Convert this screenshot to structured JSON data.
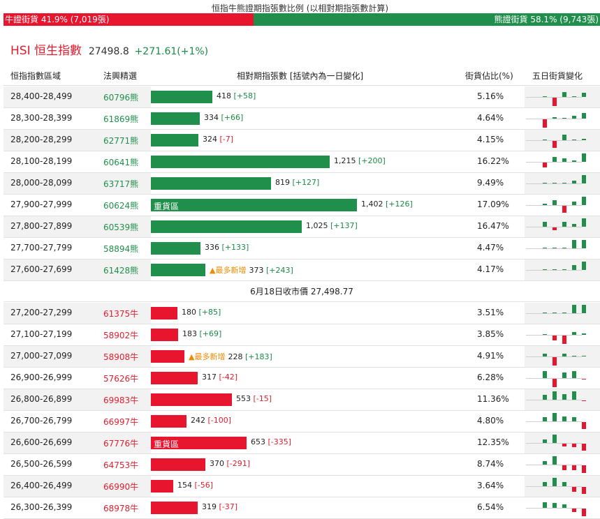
{
  "ratio": {
    "title": "恒指牛熊證期指張數比例 (以相對期指張數計算)",
    "bull_label": "牛證街貨 41.9% (7,019張)",
    "bear_label": "熊證街貨 58.1% (9,743張)",
    "bull_pct": 41.9,
    "bear_pct": 58.1,
    "bull_color": "#e8152f",
    "bear_color": "#1f8f4b"
  },
  "index": {
    "name": "HSI 恒生指數",
    "price": "27498.8",
    "change": "+271.61(+1%)"
  },
  "headers": {
    "range": "恒指指數區域",
    "code": "法興精選",
    "bar": "相對期指張數 [括號內為一日變化]",
    "pct": "街貨佔比(%)",
    "spark": "五日街貨變化"
  },
  "close_text": "6月18日收市價 27,498.77",
  "heavy_label": "重貨區",
  "new_label": "最多新增",
  "bear_rows": [
    {
      "range": "28,400-28,499",
      "code": "60796熊",
      "value": 418,
      "value_text": "418",
      "change": "[+58]",
      "pct": "5.16%",
      "heavy": false,
      "most_new": false,
      "five_day": [
        0,
        -1,
        0.6,
        0,
        0.5
      ]
    },
    {
      "range": "28,300-28,399",
      "code": "61869熊",
      "value": 334,
      "value_text": "334",
      "change": "[+66]",
      "pct": "4.64%",
      "heavy": false,
      "most_new": false,
      "five_day": [
        -1,
        0.2,
        0,
        0.3,
        0.7
      ]
    },
    {
      "range": "28,200-28,299",
      "code": "62771熊",
      "value": 324,
      "value_text": "324",
      "change": "[-7]",
      "pct": "4.15%",
      "heavy": false,
      "most_new": false,
      "five_day": [
        0,
        -0.8,
        0.7,
        0,
        0.2
      ]
    },
    {
      "range": "28,100-28,199",
      "code": "60641熊",
      "value": 1215,
      "value_text": "1,215",
      "change": "[+200]",
      "pct": "16.22%",
      "heavy": false,
      "most_new": false,
      "five_day": [
        -0.6,
        0.6,
        0.4,
        0.2,
        1
      ]
    },
    {
      "range": "28,000-28,099",
      "code": "63717熊",
      "value": 819,
      "value_text": "819",
      "change": "[+127]",
      "pct": "9.49%",
      "heavy": false,
      "most_new": false,
      "five_day": [
        0.1,
        0,
        0.1,
        0.3,
        1
      ]
    },
    {
      "range": "27,900-27,999",
      "code": "60624熊",
      "value": 1402,
      "value_text": "1,402",
      "change": "[+126]",
      "pct": "17.09%",
      "heavy": true,
      "most_new": false,
      "five_day": [
        0.2,
        0.6,
        -0.8,
        0.4,
        1
      ]
    },
    {
      "range": "27,800-27,899",
      "code": "60539熊",
      "value": 1025,
      "value_text": "1,025",
      "change": "[+137]",
      "pct": "16.47%",
      "heavy": false,
      "most_new": false,
      "five_day": [
        0.6,
        -0.3,
        0.6,
        0.3,
        1
      ]
    },
    {
      "range": "27,700-27,799",
      "code": "58894熊",
      "value": 336,
      "value_text": "336",
      "change": "[+133]",
      "pct": "4.47%",
      "heavy": false,
      "most_new": false,
      "five_day": [
        0,
        0,
        0,
        1,
        1
      ]
    },
    {
      "range": "27,600-27,699",
      "code": "61428熊",
      "value": 373,
      "value_text": "373",
      "change": "[+243]",
      "pct": "4.17%",
      "heavy": false,
      "most_new": true,
      "five_day": [
        0,
        0,
        0,
        0.6,
        1
      ]
    }
  ],
  "bull_rows": [
    {
      "range": "27,200-27,299",
      "code": "61375牛",
      "value": 180,
      "value_text": "180",
      "change": "[+85]",
      "pct": "3.51%",
      "heavy": false,
      "most_new": false,
      "five_day": [
        0,
        0,
        0,
        1,
        1
      ]
    },
    {
      "range": "27,100-27,199",
      "code": "58902牛",
      "value": 183,
      "value_text": "183",
      "change": "[+69]",
      "pct": "3.85%",
      "heavy": false,
      "most_new": false,
      "five_day": [
        0.1,
        -0.6,
        -1,
        0.3,
        0.2
      ]
    },
    {
      "range": "27,000-27,099",
      "code": "58908牛",
      "value": 228,
      "value_text": "228",
      "change": "[+183]",
      "pct": "4.91%",
      "heavy": false,
      "most_new": true,
      "five_day": [
        0.3,
        -1,
        0.3,
        0,
        0
      ]
    },
    {
      "range": "26,900-26,999",
      "code": "57626牛",
      "value": 317,
      "value_text": "317",
      "change": "[-42]",
      "pct": "6.28%",
      "heavy": false,
      "most_new": false,
      "five_day": [
        0.8,
        -1,
        0.7,
        0.8,
        -0.1
      ]
    },
    {
      "range": "26,800-26,899",
      "code": "69983牛",
      "value": 553,
      "value_text": "553",
      "change": "[-15]",
      "pct": "11.36%",
      "heavy": false,
      "most_new": false,
      "five_day": [
        0.6,
        1,
        0.7,
        1,
        -0.1
      ]
    },
    {
      "range": "26,700-26,799",
      "code": "66997牛",
      "value": 242,
      "value_text": "242",
      "change": "[-100]",
      "pct": "4.80%",
      "heavy": false,
      "most_new": false,
      "five_day": [
        0.5,
        1,
        0.6,
        0.5,
        -0.8
      ]
    },
    {
      "range": "26,600-26,699",
      "code": "67776牛",
      "value": 653,
      "value_text": "653",
      "change": "[-335]",
      "pct": "12.35%",
      "heavy": true,
      "most_new": false,
      "five_day": [
        0.4,
        1,
        -0.3,
        -0.4,
        -0.8
      ]
    },
    {
      "range": "26,500-26,599",
      "code": "64753牛",
      "value": 370,
      "value_text": "370",
      "change": "[-291]",
      "pct": "8.74%",
      "heavy": false,
      "most_new": false,
      "five_day": [
        0.4,
        1,
        -0.6,
        -0.6,
        -0.9
      ]
    },
    {
      "range": "26,400-26,499",
      "code": "66990牛",
      "value": 154,
      "value_text": "154",
      "change": "[-56]",
      "pct": "3.64%",
      "heavy": false,
      "most_new": false,
      "five_day": [
        0.5,
        1,
        0.5,
        -0.6,
        -0.8
      ]
    },
    {
      "range": "26,300-26,399",
      "code": "68978牛",
      "value": 319,
      "value_text": "319",
      "change": "[-37]",
      "pct": "6.54%",
      "heavy": false,
      "most_new": false,
      "five_day": [
        0.7,
        0.6,
        0.4,
        -0.4,
        -0.9
      ]
    }
  ]
}
